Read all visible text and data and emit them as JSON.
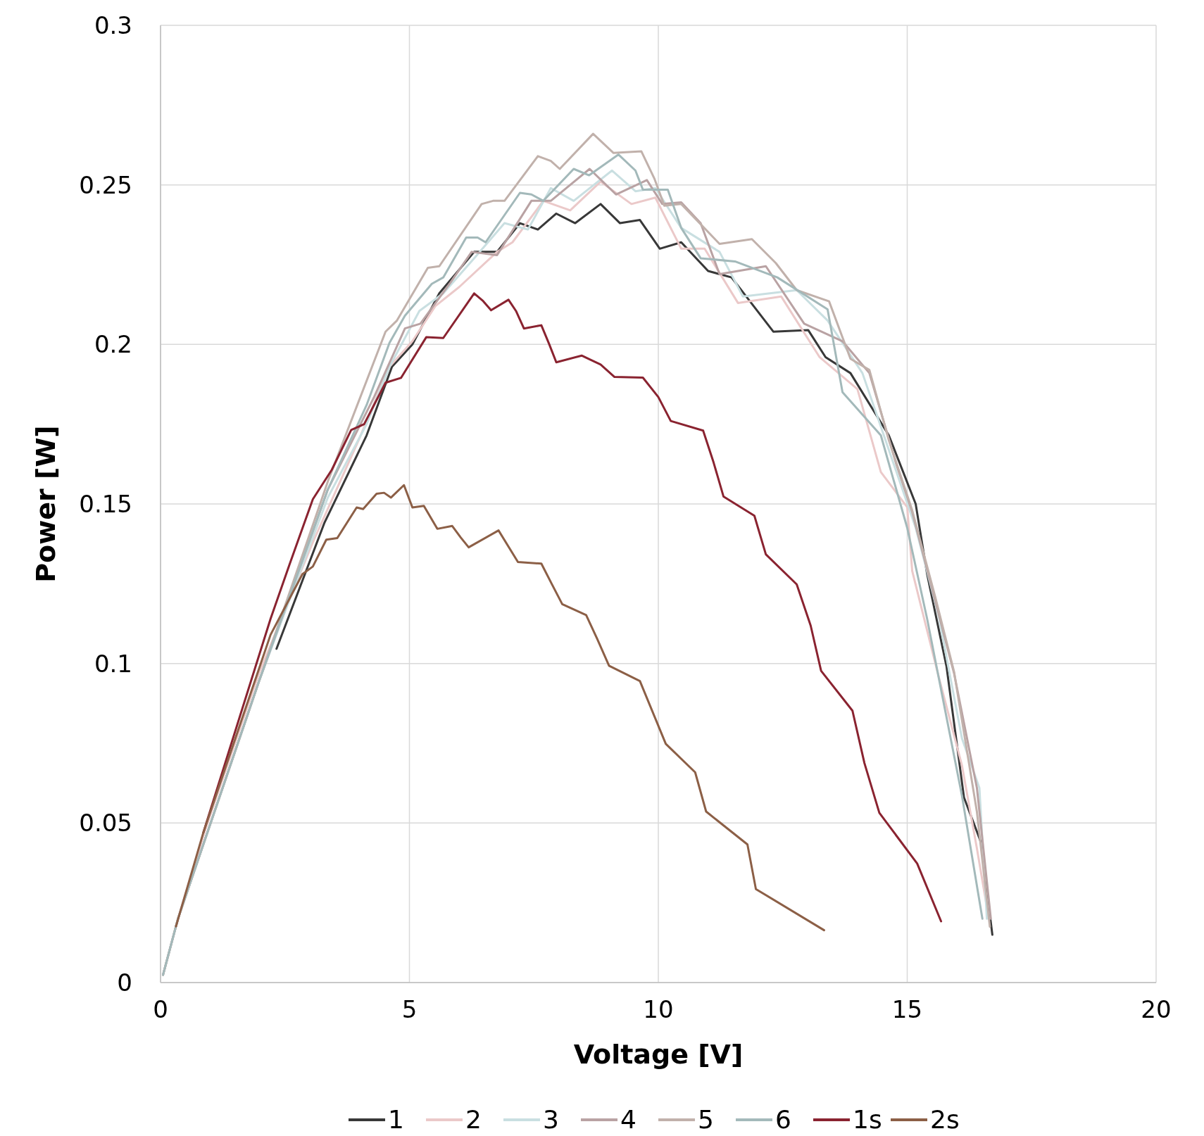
{
  "chart_data": {
    "type": "line",
    "xlabel": "Voltage [V]",
    "ylabel": "Power [W]",
    "xlim": [
      0,
      20
    ],
    "xticks": [
      0,
      5,
      10,
      15,
      20
    ],
    "ylim": [
      0,
      0.3
    ],
    "yticks": [
      0,
      0.05,
      0.1,
      0.15,
      0.2,
      0.25,
      0.3
    ],
    "grid": true,
    "legend": "bottom",
    "marker": "none",
    "line_style": "solid",
    "series": [
      {
        "name": "1",
        "color": "#383838",
        "x": [
          2.33,
          3.29,
          4.14,
          4.65,
          5.06,
          5.6,
          6.3,
          6.76,
          7.22,
          7.58,
          7.95,
          8.33,
          8.84,
          9.23,
          9.63,
          10.03,
          10.46,
          11.0,
          11.47,
          12.31,
          13.01,
          13.36,
          13.86,
          14.63,
          15.17,
          15.4,
          15.79,
          16.14,
          16.48,
          16.71
        ],
        "values": [
          0.1046,
          0.144,
          0.1715,
          0.193,
          0.2,
          0.216,
          0.229,
          0.229,
          0.238,
          0.236,
          0.241,
          0.238,
          0.244,
          0.238,
          0.239,
          0.23,
          0.232,
          0.223,
          0.221,
          0.204,
          0.2045,
          0.196,
          0.191,
          0.1715,
          0.15,
          0.128,
          0.099,
          0.058,
          0.044,
          0.015
        ]
      },
      {
        "name": "2",
        "color": "#ebc9c9",
        "x": [
          0.05,
          0.35,
          0.9,
          1.98,
          3.06,
          3.98,
          4.6,
          5.06,
          5.52,
          6.0,
          6.76,
          7.07,
          7.69,
          8.23,
          8.84,
          9.46,
          9.94,
          10.46,
          10.93,
          11.6,
          12.47,
          13.24,
          14.0,
          14.47,
          15.0,
          15.1,
          15.63,
          16.1,
          16.4,
          16.64
        ],
        "values": [
          0.0024,
          0.02,
          0.048,
          0.097,
          0.138,
          0.17,
          0.193,
          0.201,
          0.212,
          0.218,
          0.229,
          0.232,
          0.245,
          0.242,
          0.251,
          0.244,
          0.246,
          0.23,
          0.23,
          0.213,
          0.215,
          0.196,
          0.186,
          0.16,
          0.149,
          0.129,
          0.096,
          0.068,
          0.042,
          0.02
        ]
      },
      {
        "name": "3",
        "color": "#c9dfe1",
        "x": [
          0.05,
          0.35,
          1.98,
          3.36,
          4.14,
          4.6,
          5.2,
          5.68,
          6.3,
          6.91,
          7.38,
          7.84,
          8.3,
          9.07,
          9.54,
          9.94,
          10.46,
          11.23,
          11.7,
          12.78,
          13.4,
          14.1,
          14.63,
          15.17,
          15.63,
          16.1,
          16.45,
          16.6
        ],
        "values": [
          0.0024,
          0.02,
          0.0945,
          0.152,
          0.175,
          0.193,
          0.2105,
          0.216,
          0.227,
          0.238,
          0.236,
          0.249,
          0.245,
          0.2545,
          0.248,
          0.249,
          0.2365,
          0.229,
          0.215,
          0.217,
          0.2075,
          0.191,
          0.167,
          0.1425,
          0.115,
          0.0765,
          0.061,
          0.02
        ]
      },
      {
        "name": "4",
        "color": "#b9a2a3",
        "x": [
          0.05,
          0.35,
          1.98,
          3.36,
          4.29,
          4.91,
          5.22,
          5.83,
          6.25,
          6.76,
          7.45,
          7.84,
          8.62,
          9.15,
          9.77,
          10.08,
          10.46,
          10.85,
          11.23,
          12.16,
          12.93,
          13.7,
          14.24,
          14.78,
          15.1,
          15.94,
          16.4,
          16.68
        ],
        "values": [
          0.0024,
          0.02,
          0.0945,
          0.1545,
          0.1835,
          0.205,
          0.2065,
          0.2195,
          0.229,
          0.228,
          0.245,
          0.245,
          0.255,
          0.247,
          0.2515,
          0.244,
          0.2445,
          0.238,
          0.222,
          0.2245,
          0.2065,
          0.201,
          0.191,
          0.1625,
          0.1475,
          0.097,
          0.061,
          0.02
        ]
      },
      {
        "name": "5",
        "color": "#c1b1ab",
        "x": [
          0.05,
          0.35,
          1.98,
          3.36,
          4.52,
          4.75,
          5.37,
          5.6,
          6.45,
          6.68,
          6.91,
          7.58,
          7.84,
          8.02,
          8.69,
          9.1,
          9.66,
          9.92,
          10.12,
          10.46,
          11.23,
          11.88,
          12.36,
          12.78,
          13.43,
          13.86,
          14.24,
          14.63,
          15.1,
          15.56,
          15.94,
          16.4,
          16.66
        ],
        "values": [
          0.0024,
          0.02,
          0.0945,
          0.157,
          0.204,
          0.2075,
          0.224,
          0.2245,
          0.244,
          0.245,
          0.245,
          0.259,
          0.2575,
          0.255,
          0.266,
          0.26,
          0.2605,
          0.252,
          0.2435,
          0.244,
          0.2315,
          0.233,
          0.2255,
          0.217,
          0.2135,
          0.1955,
          0.192,
          0.17,
          0.148,
          0.121,
          0.0975,
          0.0535,
          0.0175
        ]
      },
      {
        "name": "6",
        "color": "#a3b9ba",
        "x": [
          0.05,
          0.35,
          1.98,
          3.36,
          4.14,
          4.6,
          4.91,
          5.45,
          5.68,
          6.14,
          6.37,
          6.53,
          7.22,
          7.45,
          7.69,
          8.3,
          8.61,
          9.2,
          9.54,
          9.69,
          10.19,
          10.46,
          10.85,
          11.54,
          12.39,
          13.4,
          13.7,
          14.47,
          15.0,
          15.4,
          16.1,
          16.51
        ],
        "values": [
          0.0024,
          0.02,
          0.0945,
          0.1545,
          0.181,
          0.2005,
          0.209,
          0.219,
          0.221,
          0.2335,
          0.2335,
          0.232,
          0.2475,
          0.247,
          0.245,
          0.255,
          0.253,
          0.2595,
          0.2545,
          0.2485,
          0.2485,
          0.2365,
          0.227,
          0.226,
          0.221,
          0.211,
          0.185,
          0.1715,
          0.1425,
          0.114,
          0.0585,
          0.02
        ]
      },
      {
        "name": "1s",
        "color": "#8a2330",
        "x": [
          0.86,
          2.21,
          2.59,
          3.06,
          3.44,
          3.83,
          4.09,
          4.52,
          4.83,
          5.34,
          5.68,
          6.3,
          6.48,
          6.64,
          6.99,
          7.14,
          7.3,
          7.65,
          7.81,
          7.95,
          8.46,
          8.84,
          9.12,
          9.69,
          10.0,
          10.25,
          10.9,
          11.11,
          11.31,
          11.93,
          12.16,
          12.78,
          13.06,
          13.27,
          13.9,
          14.14,
          14.44,
          15.2,
          15.68
        ],
        "values": [
          0.047,
          0.114,
          0.131,
          0.1515,
          0.1607,
          0.1732,
          0.175,
          0.188,
          0.1895,
          0.2023,
          0.202,
          0.216,
          0.2136,
          0.2107,
          0.214,
          0.2105,
          0.205,
          0.206,
          0.2,
          0.1944,
          0.1965,
          0.1937,
          0.1898,
          0.1896,
          0.1835,
          0.176,
          0.173,
          0.163,
          0.1523,
          0.1463,
          0.1342,
          0.1248,
          0.1119,
          0.0977,
          0.0852,
          0.0688,
          0.0532,
          0.0373,
          0.0192
        ]
      },
      {
        "name": "2s",
        "color": "#8c5f46",
        "x": [
          0.31,
          0.86,
          2.21,
          2.85,
          3.06,
          3.33,
          3.55,
          3.94,
          4.07,
          4.34,
          4.49,
          4.63,
          4.89,
          5.06,
          5.29,
          5.56,
          5.86,
          6.03,
          6.19,
          6.79,
          7.18,
          7.65,
          7.87,
          8.07,
          8.55,
          8.77,
          9.01,
          9.63,
          10.15,
          10.74,
          10.96,
          11.79,
          11.96,
          13.33
        ],
        "values": [
          0.0176,
          0.047,
          0.109,
          0.128,
          0.1304,
          0.1388,
          0.1393,
          0.1489,
          0.1484,
          0.1532,
          0.1535,
          0.152,
          0.1559,
          0.1489,
          0.1494,
          0.1422,
          0.1431,
          0.1395,
          0.1364,
          0.1417,
          0.1318,
          0.1313,
          0.1246,
          0.1186,
          0.1152,
          0.1078,
          0.0993,
          0.0945,
          0.0748,
          0.0659,
          0.0536,
          0.0433,
          0.0293,
          0.0164
        ]
      }
    ]
  }
}
